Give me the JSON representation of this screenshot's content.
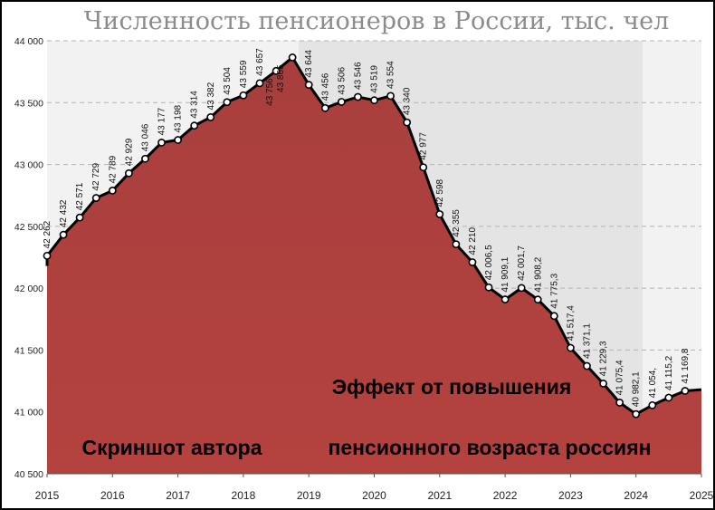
{
  "chart_data": {
    "type": "area",
    "title": "Численность пенсионеров в России, тыс. чел",
    "xlabel": "",
    "ylabel": "",
    "x_ticks": [
      "2015",
      "2016",
      "2017",
      "2018",
      "2019",
      "2020",
      "2021",
      "2022",
      "2023",
      "2024",
      "2025"
    ],
    "y_ticks": [
      "40 500",
      "41 000",
      "41 500",
      "42 000",
      "42 500",
      "43 000",
      "43 500",
      "44 000"
    ],
    "ylim": [
      40500,
      44000
    ],
    "xlim": [
      2015.0,
      2025.0
    ],
    "grid": true,
    "series": [
      {
        "x": [
          2015.0,
          2015.25,
          2015.5,
          2015.75,
          2016.0,
          2016.25,
          2016.5,
          2016.75,
          2017.0,
          2017.25,
          2017.5,
          2017.75,
          2018.0,
          2018.25,
          2018.5,
          2018.75,
          2019.0,
          2019.25,
          2019.5,
          2019.75,
          2020.0,
          2020.25,
          2020.5,
          2020.75,
          2021.0,
          2021.25,
          2021.5,
          2021.75,
          2022.0,
          2022.25,
          2022.5,
          2022.75,
          2023.0,
          2023.25,
          2023.5,
          2023.75,
          2024.0,
          2024.25,
          2024.5,
          2024.75,
          2025.0
        ],
        "values": [
          42262,
          42432,
          42571,
          42729,
          42789,
          42929,
          43046,
          43177,
          43198,
          43314,
          43382,
          43504,
          43559,
          43657,
          43756,
          43865,
          43644,
          43456,
          43506,
          43546,
          43519,
          43554,
          43340,
          42977,
          42598,
          42355,
          42210,
          42006.5,
          41909.1,
          42001.7,
          41908.2,
          41775.3,
          41517.4,
          41371.1,
          41229.3,
          41075.4,
          40982.1,
          41054,
          41115.2,
          41169.8,
          41180
        ],
        "labels": [
          "42 262",
          "42 432",
          "42 571",
          "42 729",
          "42 789",
          "42 929",
          "43 046",
          "43 177",
          "43 198",
          "43 314",
          "43 382",
          "43 504",
          "43 559",
          "43 657",
          "43 756",
          "43 865",
          "43 644",
          "43 456",
          "43 506",
          "43 546",
          "43 519",
          "43 554",
          "43 340",
          "42 977",
          "42 598",
          "42 355",
          "42 210",
          "42 006,5",
          "41 909,1",
          "42 001,7",
          "41 908,2",
          "41 775,3",
          "41 517,4",
          "41 371,1",
          "41 229,3",
          "41 075,4",
          "40 982,1",
          "41 054,",
          "41 115,2",
          "41 169,8",
          ""
        ],
        "color": "#a63d3b"
      }
    ],
    "annotations": [
      "Эффект от повышения",
      "пенсионного возраста россиян",
      "Скриншот автора"
    ]
  }
}
